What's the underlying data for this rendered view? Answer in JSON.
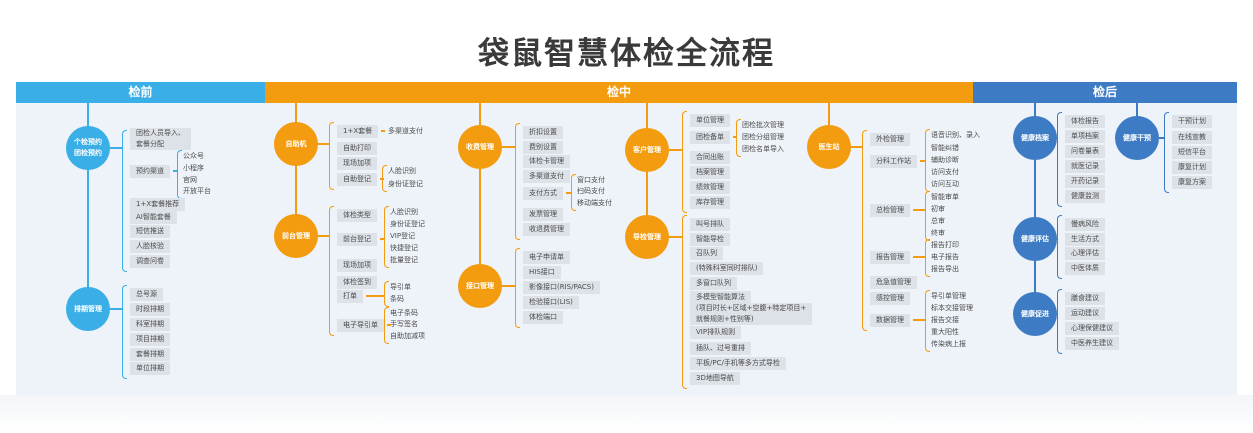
{
  "title": "袋鼠智慧体检全流程",
  "phases": [
    {
      "label": "检前",
      "color": "#3aaee6",
      "nodes": [
        {
          "label": "个检预约\n团检预约",
          "items": [
            {
              "label": "团检人员导入、\n套餐分配"
            },
            {
              "label": "预约渠道",
              "sub": [
                "公众号",
                "小程序",
                "官网",
                "开放平台"
              ]
            },
            {
              "label": "1+X套餐推荐"
            },
            {
              "label": "AI智能套餐"
            },
            {
              "label": "短信推送"
            },
            {
              "label": "人脸核验"
            },
            {
              "label": "调查问卷"
            }
          ]
        },
        {
          "label": "排期管理",
          "items": [
            {
              "label": "总号源"
            },
            {
              "label": "时段排期"
            },
            {
              "label": "科室排期"
            },
            {
              "label": "项目排期"
            },
            {
              "label": "套餐排期"
            },
            {
              "label": "单位排期"
            }
          ]
        }
      ]
    },
    {
      "label": "检中",
      "color": "#f39c0f",
      "nodes": [
        {
          "label": "自助机",
          "items": [
            {
              "label": "1+X套餐",
              "sub": [
                "多渠道支付"
              ]
            },
            {
              "label": "自助打印"
            },
            {
              "label": "现场加项"
            },
            {
              "label": "自助登记",
              "sub": [
                "人脸识别",
                "身份证登记"
              ]
            }
          ]
        },
        {
          "label": "前台管理",
          "items": [
            {
              "label": "体检类型"
            },
            {
              "label": "前台登记",
              "sub": [
                "人脸识别",
                "身份证登记",
                "VIP登记",
                "快捷登记",
                "批量登记"
              ]
            },
            {
              "label": "现场加项"
            },
            {
              "label": "体检签到"
            },
            {
              "label": "打单",
              "sub": [
                "导引单",
                "条码"
              ]
            },
            {
              "label": "电子导引单",
              "sub": [
                "电子条码",
                "手写签名",
                "自助加减项"
              ]
            }
          ]
        },
        {
          "label": "收费管理",
          "items": [
            {
              "label": "折扣设置"
            },
            {
              "label": "费别设置"
            },
            {
              "label": "体检卡管理"
            },
            {
              "label": "多渠道支付"
            },
            {
              "label": "支付方式",
              "sub": [
                "窗口支付",
                "扫码支付",
                "移动端支付"
              ]
            },
            {
              "label": "发票管理"
            },
            {
              "label": "收退费管理"
            }
          ]
        },
        {
          "label": "接口管理",
          "items": [
            {
              "label": "电子申请单"
            },
            {
              "label": "HIS接口"
            },
            {
              "label": "影像接口(RIS/PACS)"
            },
            {
              "label": "检验接口(LIS)"
            },
            {
              "label": "体检端口"
            }
          ]
        },
        {
          "label": "客户管理",
          "items": [
            {
              "label": "单位管理"
            },
            {
              "label": "团检备单",
              "sub": [
                "团检批次管理",
                "团检分组管理",
                "团检名单导入"
              ]
            },
            {
              "label": "合同出账"
            },
            {
              "label": "档案管理"
            },
            {
              "label": "绩效管理"
            },
            {
              "label": "库存管理"
            }
          ]
        },
        {
          "label": "导检管理",
          "items": [
            {
              "label": "叫号排队"
            },
            {
              "label": "智能导检"
            },
            {
              "label": "召队列"
            },
            {
              "label": "(特殊科室同时排队)"
            },
            {
              "label": "多窗口队列"
            },
            {
              "label": "多模型智能算法"
            },
            {
              "label": "(项目时长+区域+空腹+特定项目+\n就餐规则+性别等)"
            },
            {
              "label": "VIP排队规则"
            },
            {
              "label": "插队、过号重排"
            },
            {
              "label": "平板/PC/手机等多方式导检"
            },
            {
              "label": "3D地图导航"
            }
          ]
        },
        {
          "label": "医生站",
          "items": [
            {
              "label": "外检管理"
            },
            {
              "label": "分科工作站",
              "sub": [
                "语音识别、录入",
                "智能纠错",
                "辅助诊断",
                "访问支付",
                "访问互动"
              ]
            },
            {
              "label": "总检管理",
              "sub": [
                "智能审单",
                "初审",
                "总审",
                "终审"
              ]
            },
            {
              "label": "报告管理",
              "sub": [
                "报告打印",
                "电子报告",
                "报告导出"
              ]
            },
            {
              "label": "危急值管理"
            },
            {
              "label": "感控管理"
            },
            {
              "label": "数据管理",
              "sub": [
                "导引单管理",
                "标本交接管理",
                "报告交接",
                "重大阳性",
                "传染病上报"
              ]
            }
          ]
        }
      ]
    },
    {
      "label": "检后",
      "color": "#3d7cc4",
      "nodes": [
        {
          "label": "健康档案",
          "items": [
            {
              "label": "体检报告"
            },
            {
              "label": "单项档案"
            },
            {
              "label": "问卷量表"
            },
            {
              "label": "就医记录"
            },
            {
              "label": "开药记录"
            },
            {
              "label": "健康监测"
            }
          ]
        },
        {
          "label": "健康干预",
          "items": [
            {
              "label": "干预计划"
            },
            {
              "label": "在线宣教"
            },
            {
              "label": "短信平台"
            },
            {
              "label": "康复计划"
            },
            {
              "label": "康复方案"
            }
          ]
        },
        {
          "label": "健康评估",
          "items": [
            {
              "label": "慢病风险"
            },
            {
              "label": "生活方式"
            },
            {
              "label": "心理评估"
            },
            {
              "label": "中医体质"
            }
          ]
        },
        {
          "label": "健康促进",
          "items": [
            {
              "label": "膳食建议"
            },
            {
              "label": "运动建议"
            },
            {
              "label": "心理保健建议"
            },
            {
              "label": "中医养生建议"
            }
          ]
        }
      ]
    }
  ]
}
